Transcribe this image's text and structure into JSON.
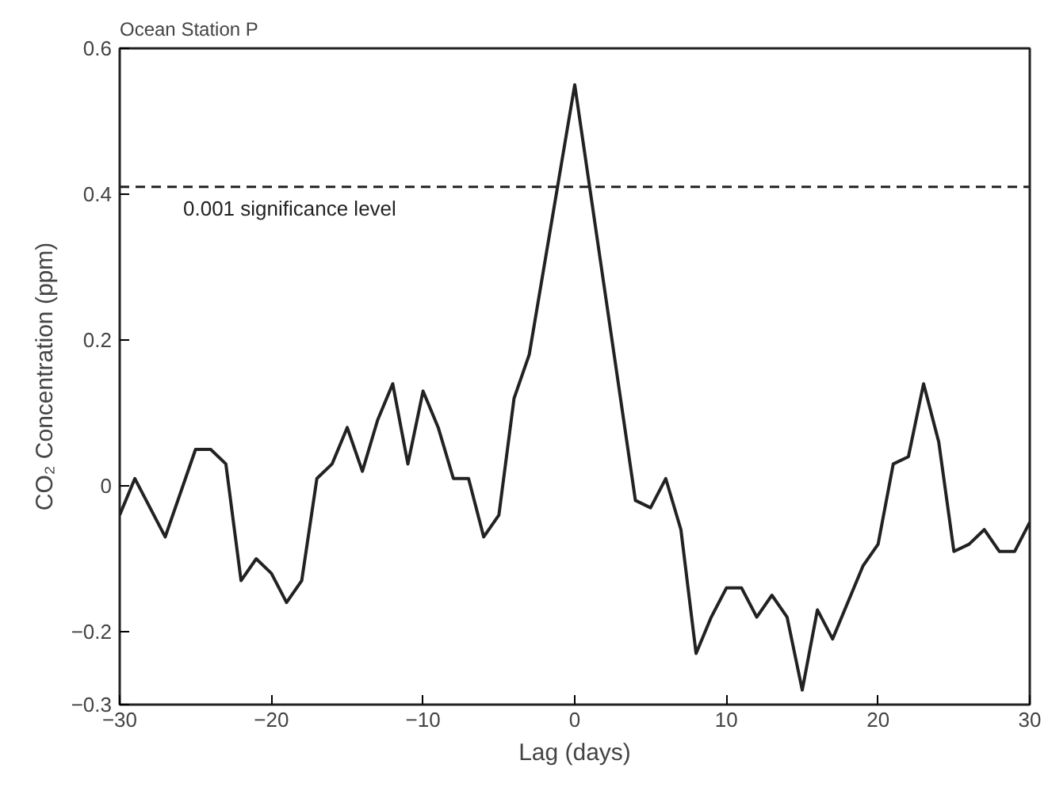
{
  "chart_data": {
    "type": "line",
    "title": "Ocean Station P",
    "xlabel": "Lag (days)",
    "ylabel": "CO₂ Concentration (ppm)",
    "x": [
      -30,
      -29,
      -27,
      -25,
      -24,
      -23,
      -22,
      -21,
      -20,
      -19,
      -18,
      -17,
      -16,
      -15,
      -14,
      -13,
      -12,
      -11,
      -10,
      -9,
      -8,
      -7,
      -6,
      -5,
      -4,
      -3,
      0,
      4,
      5,
      6,
      7,
      8,
      9,
      10,
      11,
      12,
      13,
      14,
      15,
      16,
      17,
      18,
      19,
      20,
      21,
      22,
      23,
      24,
      25,
      26,
      27,
      28,
      29,
      30
    ],
    "series": [
      {
        "color": "#222222",
        "values": [
          -0.04,
          0.01,
          -0.07,
          0.05,
          0.05,
          0.03,
          -0.13,
          -0.1,
          -0.12,
          -0.16,
          -0.13,
          0.01,
          0.03,
          0.08,
          0.02,
          0.09,
          0.14,
          0.03,
          0.13,
          0.08,
          0.01,
          0.01,
          -0.07,
          -0.04,
          0.12,
          0.18,
          0.55,
          -0.02,
          -0.03,
          0.01,
          -0.06,
          -0.23,
          -0.18,
          -0.14,
          -0.14,
          -0.18,
          -0.15,
          -0.18,
          -0.28,
          -0.17,
          -0.21,
          -0.16,
          -0.11,
          -0.08,
          0.03,
          0.04,
          0.14,
          0.06,
          -0.09,
          -0.08,
          -0.06,
          -0.09,
          -0.09,
          -0.05
        ]
      }
    ],
    "xlim": [
      -30,
      30
    ],
    "xticks": [
      -30,
      -20,
      -10,
      0,
      10,
      20,
      30
    ],
    "ylim": [
      -0.3,
      0.6
    ],
    "yticks": [
      -0.3,
      -0.2,
      0,
      0.2,
      0.4,
      0.6
    ],
    "ref_lines": [
      {
        "axis": "y",
        "value": 0.41,
        "label": "0.001 significance level",
        "line_style": "dashed",
        "color": "#222222"
      }
    ],
    "grid": false,
    "marker": "none",
    "line_style": "solid"
  }
}
